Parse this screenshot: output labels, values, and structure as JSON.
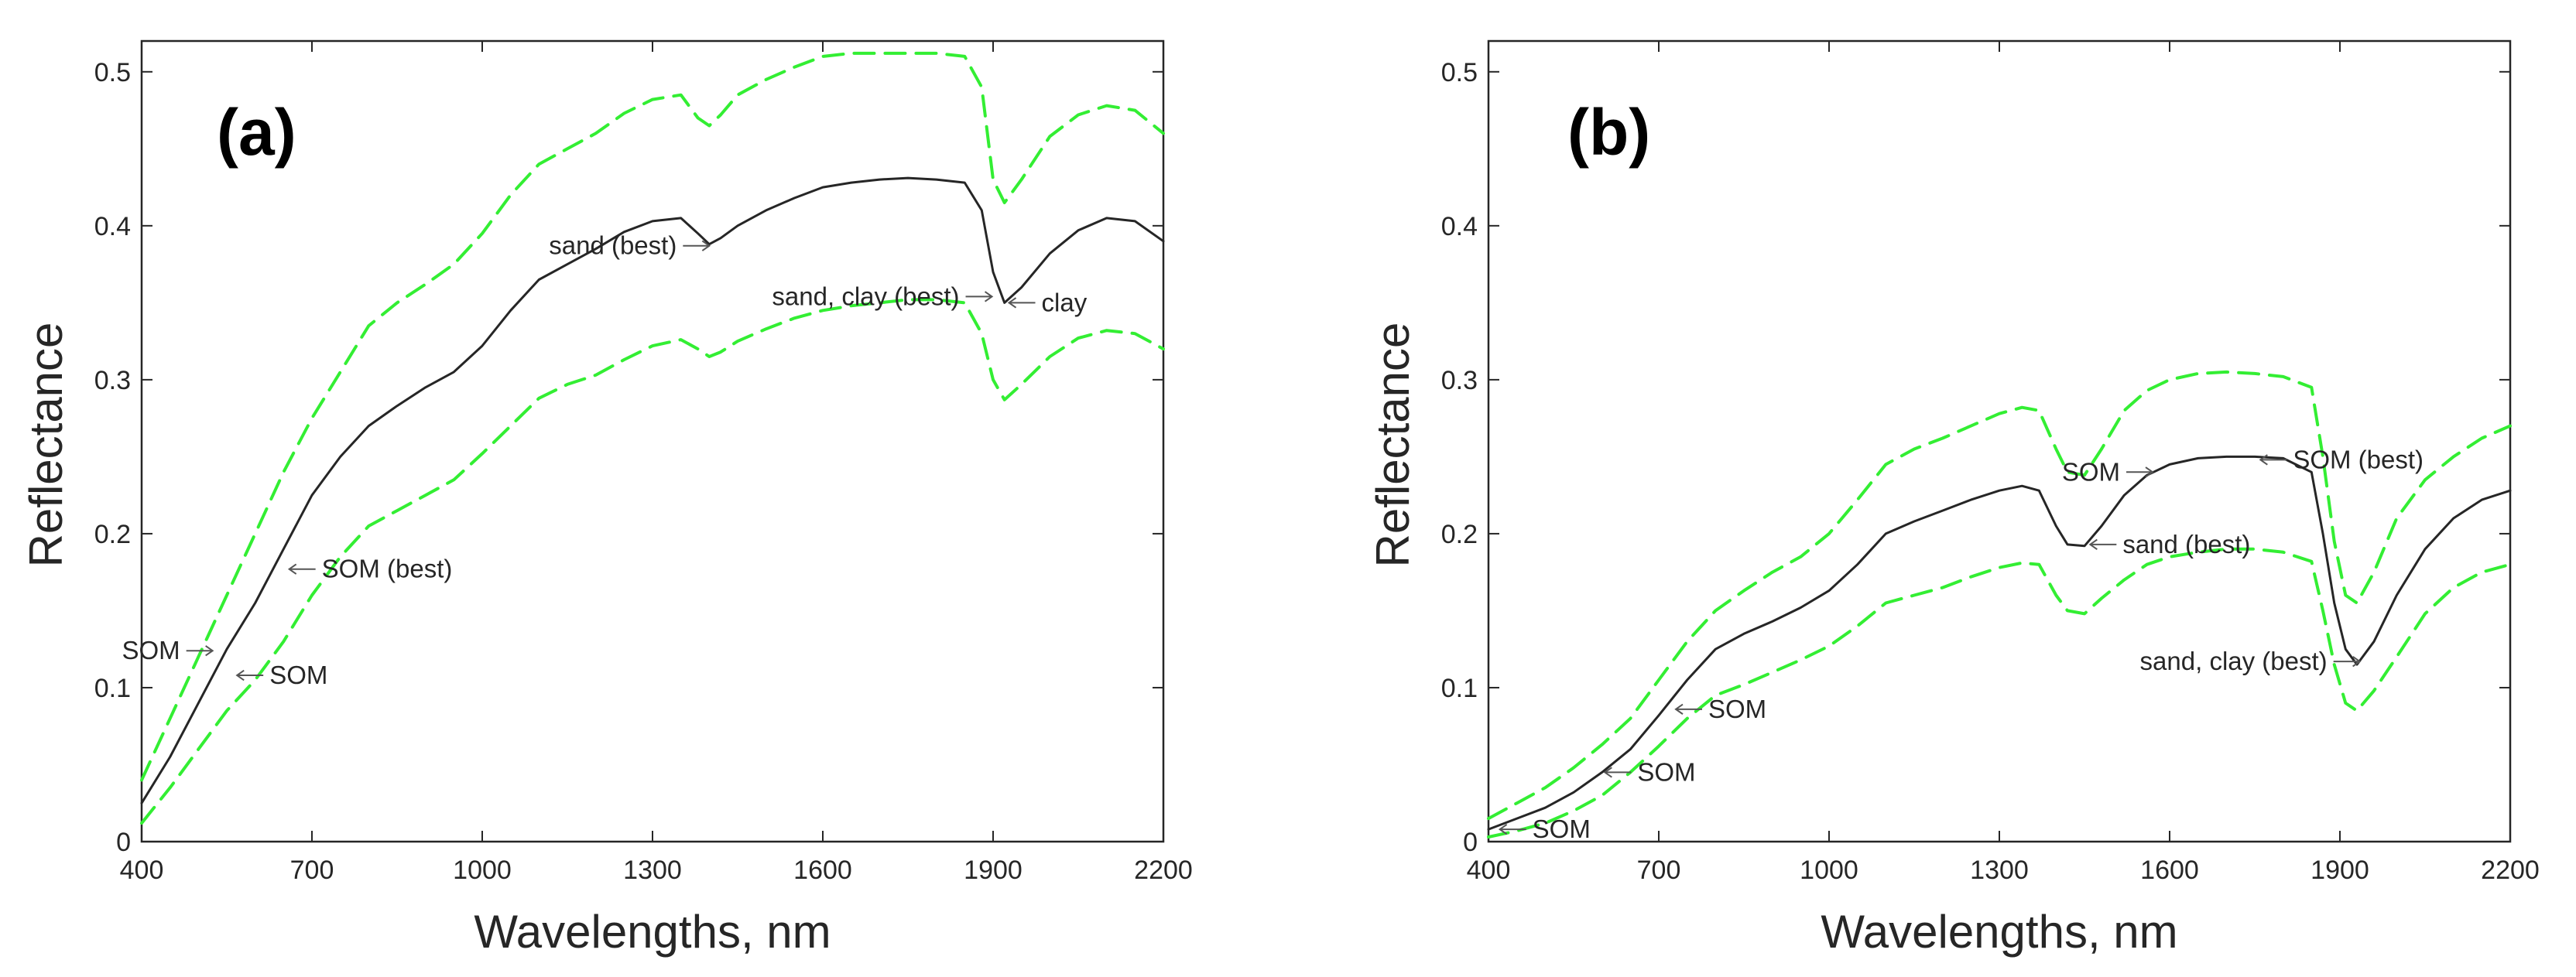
{
  "colors": {
    "mean": "#262626",
    "bounds": "#33ee33",
    "axis": "#262626",
    "arrow": "#555555"
  },
  "chart_data": [
    {
      "type": "line",
      "panel_label": "(a)",
      "xlabel": "Wavelengths, nm",
      "ylabel": "Reflectance",
      "xlim": [
        400,
        2200
      ],
      "ylim": [
        0,
        0.52
      ],
      "xticks": [
        400,
        700,
        1000,
        1300,
        1600,
        1900,
        2200
      ],
      "yticks": [
        0,
        0.1,
        0.2,
        0.3,
        0.4,
        0.5
      ],
      "ytick_labels": [
        "0",
        "0.1",
        "0.2",
        "0.3",
        "0.4",
        "0.5"
      ],
      "series": [
        {
          "name": "mean",
          "style": "solid",
          "x": [
            400,
            450,
            500,
            550,
            600,
            650,
            700,
            750,
            800,
            850,
            900,
            950,
            1000,
            1050,
            1100,
            1150,
            1200,
            1250,
            1300,
            1350,
            1380,
            1400,
            1420,
            1450,
            1500,
            1550,
            1600,
            1650,
            1700,
            1750,
            1800,
            1850,
            1880,
            1900,
            1920,
            1950,
            2000,
            2050,
            2100,
            2150,
            2200
          ],
          "y": [
            0.025,
            0.055,
            0.09,
            0.125,
            0.155,
            0.19,
            0.225,
            0.25,
            0.27,
            0.283,
            0.295,
            0.305,
            0.322,
            0.345,
            0.365,
            0.375,
            0.385,
            0.396,
            0.403,
            0.405,
            0.395,
            0.388,
            0.392,
            0.4,
            0.41,
            0.418,
            0.425,
            0.428,
            0.43,
            0.431,
            0.43,
            0.428,
            0.41,
            0.37,
            0.35,
            0.36,
            0.382,
            0.397,
            0.405,
            0.403,
            0.39
          ]
        },
        {
          "name": "upper",
          "style": "dashed",
          "x": [
            400,
            450,
            500,
            550,
            600,
            650,
            700,
            750,
            800,
            850,
            900,
            950,
            1000,
            1050,
            1100,
            1150,
            1200,
            1250,
            1300,
            1350,
            1380,
            1400,
            1420,
            1450,
            1500,
            1550,
            1600,
            1650,
            1700,
            1750,
            1800,
            1850,
            1880,
            1900,
            1920,
            1950,
            2000,
            2050,
            2100,
            2150,
            2200
          ],
          "y": [
            0.04,
            0.08,
            0.12,
            0.16,
            0.2,
            0.24,
            0.275,
            0.305,
            0.335,
            0.35,
            0.362,
            0.375,
            0.395,
            0.42,
            0.44,
            0.45,
            0.46,
            0.473,
            0.482,
            0.485,
            0.47,
            0.465,
            0.472,
            0.485,
            0.495,
            0.503,
            0.51,
            0.512,
            0.512,
            0.512,
            0.512,
            0.51,
            0.49,
            0.43,
            0.415,
            0.43,
            0.458,
            0.472,
            0.478,
            0.475,
            0.46
          ]
        },
        {
          "name": "lower",
          "style": "dashed",
          "x": [
            400,
            450,
            500,
            550,
            600,
            650,
            700,
            750,
            800,
            850,
            900,
            950,
            1000,
            1050,
            1100,
            1150,
            1200,
            1250,
            1300,
            1350,
            1380,
            1400,
            1420,
            1450,
            1500,
            1550,
            1600,
            1650,
            1700,
            1750,
            1800,
            1850,
            1880,
            1900,
            1920,
            1950,
            2000,
            2050,
            2100,
            2150,
            2200
          ],
          "y": [
            0.012,
            0.035,
            0.06,
            0.085,
            0.105,
            0.13,
            0.16,
            0.185,
            0.205,
            0.215,
            0.225,
            0.235,
            0.252,
            0.27,
            0.288,
            0.297,
            0.303,
            0.313,
            0.322,
            0.326,
            0.32,
            0.315,
            0.318,
            0.325,
            0.333,
            0.34,
            0.345,
            0.348,
            0.35,
            0.352,
            0.352,
            0.35,
            0.33,
            0.3,
            0.287,
            0.297,
            0.315,
            0.327,
            0.332,
            0.33,
            0.32
          ]
        }
      ],
      "annotations": [
        {
          "text": "sand (best)",
          "x": 1400,
          "y": 0.387,
          "side": "left"
        },
        {
          "text": "sand, clay (best)",
          "x": 1898,
          "y": 0.354,
          "side": "left"
        },
        {
          "text": "clay",
          "x": 1928,
          "y": 0.35,
          "side": "right"
        },
        {
          "text": "SOM (best)",
          "x": 660,
          "y": 0.177,
          "side": "right"
        },
        {
          "text": "SOM",
          "x": 525,
          "y": 0.124,
          "side": "left"
        },
        {
          "text": "SOM",
          "x": 568,
          "y": 0.108,
          "side": "right"
        }
      ]
    },
    {
      "type": "line",
      "panel_label": "(b)",
      "xlabel": "Wavelengths, nm",
      "ylabel": "Reflectance",
      "xlim": [
        400,
        2200
      ],
      "ylim": [
        0,
        0.52
      ],
      "xticks": [
        400,
        700,
        1000,
        1300,
        1600,
        1900,
        2200
      ],
      "yticks": [
        0,
        0.1,
        0.2,
        0.3,
        0.4,
        0.5
      ],
      "ytick_labels": [
        "0",
        "0.1",
        "0.2",
        "0.3",
        "0.4",
        "0.5"
      ],
      "series": [
        {
          "name": "mean",
          "style": "solid",
          "x": [
            400,
            450,
            500,
            550,
            600,
            650,
            700,
            750,
            800,
            850,
            900,
            950,
            1000,
            1050,
            1100,
            1150,
            1200,
            1250,
            1300,
            1340,
            1370,
            1400,
            1420,
            1450,
            1480,
            1520,
            1560,
            1600,
            1650,
            1700,
            1750,
            1800,
            1850,
            1870,
            1890,
            1910,
            1930,
            1960,
            2000,
            2050,
            2100,
            2150,
            2200
          ],
          "y": [
            0.008,
            0.015,
            0.022,
            0.032,
            0.045,
            0.06,
            0.082,
            0.105,
            0.125,
            0.135,
            0.143,
            0.152,
            0.163,
            0.18,
            0.2,
            0.208,
            0.215,
            0.222,
            0.228,
            0.231,
            0.228,
            0.205,
            0.193,
            0.192,
            0.205,
            0.225,
            0.238,
            0.245,
            0.249,
            0.25,
            0.25,
            0.249,
            0.24,
            0.2,
            0.155,
            0.125,
            0.115,
            0.13,
            0.16,
            0.19,
            0.21,
            0.222,
            0.228
          ]
        },
        {
          "name": "upper",
          "style": "dashed",
          "x": [
            400,
            450,
            500,
            550,
            600,
            650,
            700,
            750,
            800,
            850,
            900,
            950,
            1000,
            1050,
            1100,
            1150,
            1200,
            1250,
            1300,
            1340,
            1370,
            1400,
            1420,
            1450,
            1480,
            1520,
            1560,
            1600,
            1650,
            1700,
            1750,
            1800,
            1850,
            1870,
            1890,
            1910,
            1930,
            1960,
            2000,
            2050,
            2100,
            2150,
            2200
          ],
          "y": [
            0.015,
            0.025,
            0.035,
            0.048,
            0.063,
            0.08,
            0.105,
            0.13,
            0.15,
            0.163,
            0.175,
            0.185,
            0.2,
            0.222,
            0.245,
            0.255,
            0.262,
            0.27,
            0.278,
            0.282,
            0.28,
            0.255,
            0.24,
            0.238,
            0.255,
            0.28,
            0.293,
            0.3,
            0.304,
            0.305,
            0.304,
            0.302,
            0.295,
            0.25,
            0.195,
            0.16,
            0.155,
            0.175,
            0.21,
            0.235,
            0.25,
            0.262,
            0.27
          ]
        },
        {
          "name": "lower",
          "style": "dashed",
          "x": [
            400,
            450,
            500,
            550,
            600,
            650,
            700,
            750,
            800,
            850,
            900,
            950,
            1000,
            1050,
            1100,
            1150,
            1200,
            1250,
            1300,
            1340,
            1370,
            1400,
            1420,
            1450,
            1480,
            1520,
            1560,
            1600,
            1650,
            1700,
            1750,
            1800,
            1850,
            1870,
            1890,
            1910,
            1930,
            1960,
            2000,
            2050,
            2100,
            2150,
            2200
          ],
          "y": [
            0.003,
            0.007,
            0.012,
            0.02,
            0.03,
            0.045,
            0.062,
            0.08,
            0.095,
            0.102,
            0.11,
            0.118,
            0.127,
            0.14,
            0.155,
            0.16,
            0.165,
            0.172,
            0.178,
            0.181,
            0.18,
            0.16,
            0.15,
            0.148,
            0.158,
            0.17,
            0.18,
            0.185,
            0.188,
            0.19,
            0.19,
            0.188,
            0.182,
            0.15,
            0.115,
            0.09,
            0.085,
            0.098,
            0.12,
            0.148,
            0.165,
            0.175,
            0.18
          ]
        }
      ],
      "annotations": [
        {
          "text": "SOM",
          "x": 1570,
          "y": 0.24,
          "side": "left"
        },
        {
          "text": "SOM (best)",
          "x": 1760,
          "y": 0.248,
          "side": "right"
        },
        {
          "text": "sand (best)",
          "x": 1460,
          "y": 0.193,
          "side": "right"
        },
        {
          "text": "sand, clay (best)",
          "x": 1935,
          "y": 0.117,
          "side": "left"
        },
        {
          "text": "SOM",
          "x": 730,
          "y": 0.086,
          "side": "right"
        },
        {
          "text": "SOM",
          "x": 605,
          "y": 0.045,
          "side": "right"
        },
        {
          "text": "SOM",
          "x": 420,
          "y": 0.008,
          "side": "right"
        }
      ]
    }
  ]
}
